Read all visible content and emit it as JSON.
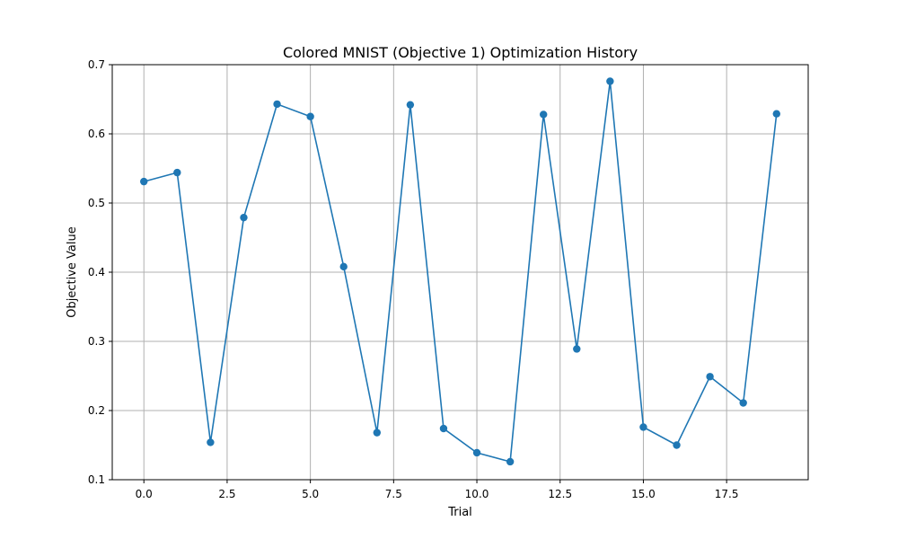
{
  "chart_data": {
    "type": "line",
    "title": "Colored MNIST (Objective 1) Optimization History",
    "xlabel": "Trial",
    "ylabel": "Objective Value",
    "xlim": [
      -0.95,
      19.95
    ],
    "ylim": [
      0.1,
      0.7
    ],
    "xticks": [
      0.0,
      2.5,
      5.0,
      7.5,
      10.0,
      12.5,
      15.0,
      17.5
    ],
    "xtick_labels": [
      "0.0",
      "2.5",
      "5.0",
      "7.5",
      "10.0",
      "12.5",
      "15.0",
      "17.5"
    ],
    "yticks": [
      0.1,
      0.2,
      0.3,
      0.4,
      0.5,
      0.6,
      0.7
    ],
    "ytick_labels": [
      "0.1",
      "0.2",
      "0.3",
      "0.4",
      "0.5",
      "0.6",
      "0.7"
    ],
    "grid": true,
    "series": [
      {
        "color": "#1f77b4",
        "marker": "circle",
        "x": [
          0,
          1,
          2,
          3,
          4,
          5,
          6,
          7,
          8,
          9,
          10,
          11,
          12,
          13,
          14,
          15,
          16,
          17,
          18,
          19
        ],
        "y": [
          0.531,
          0.544,
          0.154,
          0.479,
          0.643,
          0.625,
          0.408,
          0.168,
          0.642,
          0.174,
          0.139,
          0.126,
          0.628,
          0.289,
          0.676,
          0.176,
          0.15,
          0.249,
          0.211,
          0.629
        ]
      }
    ]
  }
}
